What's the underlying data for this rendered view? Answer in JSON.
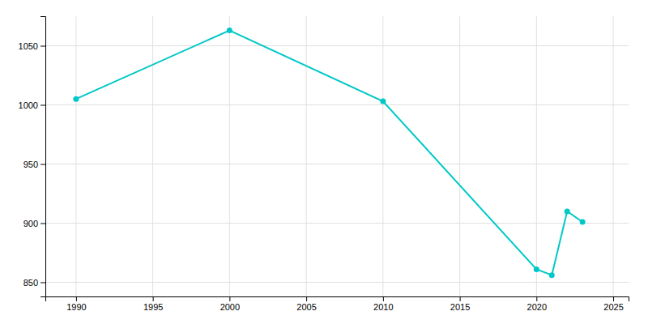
{
  "chart_data": {
    "type": "line",
    "x": [
      1990,
      2000,
      2010,
      2020,
      2021,
      2022,
      2023
    ],
    "values": [
      1005,
      1063,
      1003,
      861,
      856,
      910,
      901
    ],
    "color": "#00c8c8",
    "marker": "circle",
    "xlim": [
      1988,
      2026
    ],
    "ylim": [
      838,
      1075
    ],
    "xticks": [
      1990,
      1995,
      2000,
      2005,
      2010,
      2015,
      2020,
      2025
    ],
    "yticks": [
      850,
      900,
      950,
      1000,
      1050
    ],
    "grid": true
  }
}
